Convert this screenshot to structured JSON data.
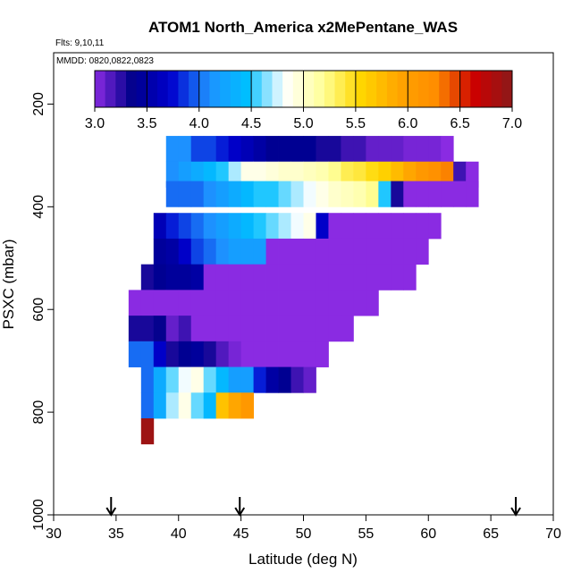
{
  "chart_data": {
    "type": "heatmap",
    "title": "ATOM1 North_America x2MePentane_WAS",
    "flights_label": "Flts: 9,10,11",
    "dates_label": "MMDD: 0820,0822,0823",
    "xlabel": "Latitude (deg N)",
    "ylabel": "PSXC (mbar)",
    "xlim": [
      30,
      70
    ],
    "ylim": [
      1000,
      100
    ],
    "x_ticks": [
      "30",
      "35",
      "40",
      "45",
      "50",
      "55",
      "60",
      "65",
      "70"
    ],
    "y_ticks": [
      "200",
      "400",
      "600",
      "800",
      "1000"
    ],
    "colorbar": {
      "range": [
        3.0,
        7.0
      ],
      "ticks": [
        "3.0",
        "3.5",
        "4.0",
        "4.5",
        "5.0",
        "5.5",
        "6.0",
        "6.5",
        "7.0"
      ],
      "colors": [
        "#8a2be2",
        "#00008b",
        "#0000cd",
        "#1e90ff",
        "#00bfff",
        "#ffffff",
        "#ffff99",
        "#ffd700",
        "#ffa500",
        "#ff8c00",
        "#cc0000",
        "#8b1a1a"
      ]
    },
    "cell_width_deg": 1.0,
    "cell_height_mbar": 50,
    "rows": [
      {
        "p": 287,
        "lat_start": 39.0,
        "values": [
          4.1,
          4.1,
          3.9,
          3.9,
          3.8,
          3.7,
          3.6,
          3.5,
          3.4,
          3.4,
          3.4,
          3.4,
          3.3,
          3.3,
          3.2,
          3.2,
          3.1,
          3.1,
          3.1,
          3.05,
          3.05,
          3.05,
          3.0
        ]
      },
      {
        "p": 337,
        "lat_start": 39.0,
        "values": [
          4.1,
          4.2,
          4.3,
          4.4,
          4.5,
          4.7,
          4.9,
          4.9,
          4.95,
          5.0,
          5.0,
          5.05,
          5.1,
          5.2,
          5.35,
          5.4,
          5.5,
          5.6,
          5.75,
          5.9,
          6.1,
          6.2,
          6.3,
          3.2,
          3.0
        ]
      },
      {
        "p": 375,
        "lat_start": 39.0,
        "values": [
          4.0,
          4.0,
          4.0,
          4.1,
          4.2,
          4.3,
          4.4,
          4.5,
          4.5,
          4.6,
          4.7,
          4.8,
          4.9,
          5.0,
          5.05,
          5.1,
          5.2,
          4.5,
          3.3,
          3.0,
          3.0,
          3.0,
          3.0,
          3.0,
          3.0
        ]
      },
      {
        "p": 437,
        "lat_start": 38.0,
        "values": [
          3.6,
          3.8,
          3.9,
          4.0,
          4.1,
          4.2,
          4.3,
          4.4,
          4.5,
          4.6,
          4.7,
          4.8,
          4.9,
          3.7,
          3.0,
          3.0,
          3.0,
          3.0,
          3.0,
          3.0,
          3.0,
          3.0,
          3.0
        ]
      },
      {
        "p": 487,
        "lat_start": 38.0,
        "values": [
          3.45,
          3.5,
          3.7,
          3.9,
          4.0,
          4.1,
          4.2,
          4.2,
          4.2,
          3.0,
          3.0,
          3.0,
          3.0,
          3.0,
          3.0,
          3.0,
          3.0,
          3.0,
          3.0,
          3.0,
          3.0,
          3.0
        ]
      },
      {
        "p": 537,
        "lat_start": 37.0,
        "values": [
          3.3,
          3.4,
          3.45,
          3.45,
          3.5,
          3.0,
          3.0,
          3.0,
          3.0,
          3.0,
          3.0,
          3.0,
          3.0,
          3.0,
          3.0,
          3.0,
          3.0,
          3.0,
          3.0,
          3.0,
          3.0,
          3.0
        ]
      },
      {
        "p": 587,
        "lat_start": 36.0,
        "values": [
          3.0,
          3.0,
          3.0,
          3.0,
          3.0,
          3.0,
          3.0,
          3.0,
          3.0,
          3.0,
          3.0,
          3.0,
          3.0,
          3.0,
          3.0,
          3.0,
          3.0,
          3.0,
          3.0,
          3.0
        ]
      },
      {
        "p": 637,
        "lat_start": 36.0,
        "values": [
          3.3,
          3.3,
          3.35,
          3.1,
          3.2,
          3.0,
          3.0,
          3.0,
          3.0,
          3.0,
          3.0,
          3.0,
          3.0,
          3.0,
          3.0,
          3.0,
          3.0,
          3.0
        ]
      },
      {
        "p": 687,
        "lat_start": 36.0,
        "values": [
          4.0,
          4.0,
          3.7,
          3.3,
          3.4,
          3.45,
          3.3,
          3.15,
          3.05,
          3.0,
          3.0,
          3.0,
          3.0,
          3.0,
          3.0,
          3.0
        ]
      },
      {
        "p": 737,
        "lat_start": 37.0,
        "values": [
          4.0,
          4.3,
          4.6,
          4.8,
          4.9,
          4.6,
          4.4,
          4.2,
          4.2,
          3.8,
          3.5,
          3.4,
          3.2,
          3.1
        ]
      },
      {
        "p": 787,
        "lat_start": 37.0,
        "values": [
          4.0,
          4.3,
          4.7,
          4.9,
          4.6,
          4.4,
          5.7,
          5.9,
          6.1
        ]
      },
      {
        "p": 837,
        "lat_start": 37.0,
        "values": [
          6.9
        ]
      }
    ],
    "flight_markers_lat": [
      34.6,
      44.9,
      67.0
    ]
  }
}
